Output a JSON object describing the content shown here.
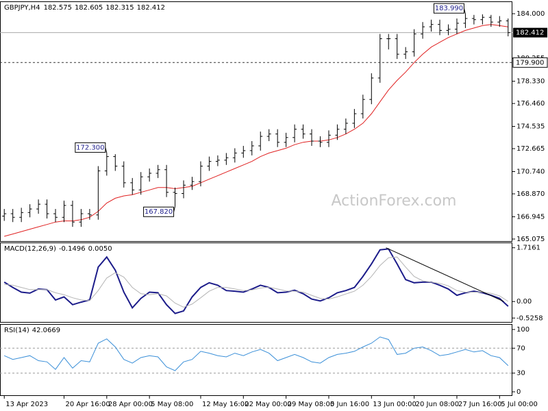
{
  "watermark": "ActionForex.com",
  "chart_data": [
    {
      "type": "ohlc",
      "symbol": "GBPJPY,H4",
      "header_values": [
        182.575,
        182.605,
        182.315,
        182.412
      ],
      "xlim": [
        -0.5,
        59.5
      ],
      "ylim": [
        164.9,
        184.98
      ],
      "yticks": [
        165.075,
        166.945,
        {
          "value": 168.87,
          "label": "168.870"
        },
        {
          "value": 170.74,
          "label": "170.740"
        },
        172.665,
        174.535,
        {
          "value": 176.46,
          "label": "176.460"
        },
        {
          "value": 178.33,
          "label": "178.330"
        },
        180.255,
        {
          "value": 184,
          "label": "184.000"
        }
      ],
      "bar_color": "#000000",
      "open": [
        167.0,
        167.2,
        166.9,
        167.3,
        167.6,
        168.0,
        167.2,
        166.9,
        167.9,
        166.5,
        167.2,
        167.1,
        170.8,
        172.0,
        171.2,
        169.8,
        169.2,
        170.3,
        170.6,
        170.9,
        169.0,
        168.9,
        169.6,
        169.9,
        171.2,
        171.6,
        171.7,
        171.9,
        172.3,
        172.5,
        172.9,
        173.7,
        173.9,
        173.2,
        173.6,
        174.3,
        173.9,
        173.3,
        173.2,
        173.8,
        174.3,
        174.8,
        175.6,
        176.8,
        178.6,
        181.9,
        181.9,
        180.6,
        180.8,
        182.3,
        182.9,
        183.1,
        182.6,
        182.7,
        183.2,
        183.6,
        183.5,
        183.7,
        183.3,
        183.4
      ],
      "high": [
        167.6,
        167.6,
        167.7,
        168.0,
        168.4,
        168.4,
        167.6,
        168.3,
        168.3,
        167.6,
        167.6,
        171.2,
        172.3,
        172.2,
        171.6,
        170.2,
        170.7,
        171.0,
        171.3,
        171.3,
        169.4,
        170.0,
        170.3,
        171.6,
        172.0,
        172.1,
        172.3,
        172.7,
        172.9,
        173.3,
        174.1,
        174.3,
        174.3,
        174.0,
        174.7,
        174.7,
        174.3,
        173.7,
        174.2,
        174.7,
        175.2,
        176.0,
        177.2,
        179.0,
        182.3,
        182.3,
        182.3,
        181.2,
        182.7,
        183.3,
        183.5,
        183.5,
        183.1,
        183.6,
        183.99,
        183.9,
        183.95,
        183.9,
        183.8,
        183.6
      ],
      "low": [
        166.6,
        166.5,
        166.5,
        166.9,
        167.2,
        166.8,
        166.5,
        166.5,
        166.1,
        166.1,
        166.7,
        166.7,
        170.4,
        170.8,
        169.4,
        168.8,
        168.8,
        169.9,
        170.2,
        168.6,
        167.82,
        168.5,
        169.2,
        169.5,
        170.8,
        171.2,
        171.3,
        171.5,
        171.9,
        172.1,
        172.5,
        173.3,
        172.8,
        172.8,
        173.2,
        173.5,
        172.9,
        172.8,
        172.8,
        173.4,
        173.9,
        174.4,
        175.2,
        176.4,
        178.2,
        181.0,
        180.2,
        180.2,
        180.4,
        181.9,
        182.5,
        182.2,
        182.2,
        182.3,
        182.8,
        183.1,
        183.1,
        182.9,
        182.9,
        182.1
      ],
      "close": [
        167.2,
        166.9,
        167.3,
        167.6,
        168.0,
        167.2,
        166.9,
        167.9,
        166.5,
        167.2,
        167.1,
        170.8,
        172.0,
        171.2,
        169.8,
        169.2,
        170.3,
        170.6,
        170.9,
        169.0,
        168.9,
        169.6,
        169.9,
        171.2,
        171.6,
        171.7,
        171.9,
        172.3,
        172.5,
        172.9,
        173.7,
        173.9,
        173.2,
        173.6,
        174.3,
        173.9,
        173.3,
        173.2,
        173.8,
        174.3,
        174.8,
        175.6,
        176.8,
        178.6,
        181.9,
        181.9,
        180.6,
        180.8,
        182.3,
        182.9,
        183.1,
        182.6,
        182.7,
        183.2,
        183.6,
        183.5,
        183.7,
        183.3,
        183.4,
        182.412
      ],
      "series": [
        {
          "color": "#e02020",
          "values": [
            165.3,
            165.5,
            165.7,
            165.9,
            166.1,
            166.3,
            166.5,
            166.6,
            166.6,
            166.7,
            166.9,
            167.4,
            168.1,
            168.5,
            168.7,
            168.8,
            169.0,
            169.2,
            169.4,
            169.4,
            169.3,
            169.4,
            169.5,
            169.8,
            170.1,
            170.4,
            170.7,
            171.0,
            171.3,
            171.6,
            172.0,
            172.3,
            172.5,
            172.7,
            173.0,
            173.2,
            173.3,
            173.3,
            173.4,
            173.6,
            173.9,
            174.3,
            174.8,
            175.6,
            176.6,
            177.6,
            178.4,
            179.1,
            179.9,
            180.6,
            181.2,
            181.6,
            182.0,
            182.3,
            182.6,
            182.8,
            183.0,
            183.1,
            183.0,
            182.9
          ]
        }
      ],
      "levels": [
        {
          "value": 179.9,
          "label": "179.900"
        }
      ],
      "annotations": [
        {
          "value": 183.99,
          "label": "183.990"
        },
        {
          "value": 172.3,
          "label": "172.300"
        },
        {
          "value": 167.82,
          "label": "167.820"
        }
      ]
    },
    {
      "type": "line",
      "indicator": "MACD(12,26,9)",
      "readout": [
        -0.1496,
        {
          "value": 0.005,
          "label": "0.0050"
        }
      ],
      "xlim": [
        -0.5,
        59.5
      ],
      "ylim": [
        -0.651,
        1.8626
      ],
      "yticks": [
        -0.5258,
        {
          "value": 0,
          "label": "0.00"
        },
        1.7161
      ],
      "series": [
        {
          "color": "#1c1c8a",
          "values": [
            0.62,
            0.45,
            0.3,
            0.27,
            0.4,
            0.38,
            0.05,
            0.15,
            -0.1,
            -0.02,
            0.05,
            1.1,
            1.42,
            1.0,
            0.3,
            -0.2,
            0.1,
            0.3,
            0.28,
            -0.1,
            -0.38,
            -0.3,
            0.15,
            0.45,
            0.6,
            0.52,
            0.35,
            0.33,
            0.3,
            0.4,
            0.52,
            0.45,
            0.28,
            0.3,
            0.36,
            0.25,
            0.08,
            0.02,
            0.12,
            0.28,
            0.35,
            0.45,
            0.8,
            1.2,
            1.65,
            1.68,
            1.2,
            0.7,
            0.6,
            0.62,
            0.62,
            0.52,
            0.4,
            0.2,
            0.28,
            0.33,
            0.28,
            0.2,
            0.1,
            -0.1496
          ]
        },
        {
          "color": "#b4b4b4",
          "values": [
            0.55,
            0.52,
            0.45,
            0.38,
            0.38,
            0.38,
            0.28,
            0.22,
            0.12,
            0.05,
            0.03,
            0.35,
            0.75,
            0.92,
            0.78,
            0.45,
            0.25,
            0.22,
            0.25,
            0.18,
            -0.05,
            -0.18,
            -0.08,
            0.12,
            0.33,
            0.45,
            0.45,
            0.4,
            0.35,
            0.37,
            0.43,
            0.46,
            0.4,
            0.34,
            0.33,
            0.3,
            0.2,
            0.1,
            0.08,
            0.15,
            0.24,
            0.33,
            0.52,
            0.8,
            1.15,
            1.4,
            1.42,
            1.1,
            0.8,
            0.66,
            0.62,
            0.58,
            0.5,
            0.35,
            0.3,
            0.3,
            0.3,
            0.26,
            0.18,
            0.005
          ]
        }
      ],
      "trendline": {
        "x": [
          44.7,
          58.5
        ],
        "values": [
          1.7161,
          0
        ]
      }
    },
    {
      "type": "line",
      "indicator": "RSI(14)",
      "readout": [
        42.0669
      ],
      "xlim": [
        -0.5,
        59.5
      ],
      "ylim": [
        -5.5,
        107.7
      ],
      "yticks": [
        0,
        30,
        70,
        100
      ],
      "levels": [
        70,
        30
      ],
      "xticks": [
        {
          "value": 0,
          "label": "13 Apr 2023"
        },
        {
          "value": 7,
          "label": "20 Apr 16:00"
        },
        {
          "value": 12,
          "label": "28 Apr 00:00"
        },
        {
          "value": 17,
          "label": "5 May 08:00"
        },
        {
          "value": 23,
          "label": "12 May 16:00"
        },
        {
          "value": 28,
          "label": "22 May 00:00"
        },
        {
          "value": 33,
          "label": "29 May 08:00"
        },
        {
          "value": 38,
          "label": "5 Jun 16:00"
        },
        {
          "value": 43,
          "label": "13 Jun 00:00"
        },
        {
          "value": 48,
          "label": "20 Jun 08:00"
        },
        {
          "value": 53,
          "label": "27 Jun 16:00"
        },
        {
          "value": 58,
          "label": "5 Jul 00:00"
        }
      ],
      "series": [
        {
          "color": "#3a8fd8",
          "values": [
            58,
            52,
            55,
            58,
            50,
            48,
            36,
            55,
            38,
            50,
            48,
            78,
            85,
            72,
            52,
            46,
            55,
            58,
            56,
            40,
            34,
            48,
            52,
            65,
            62,
            58,
            56,
            62,
            58,
            64,
            68,
            62,
            50,
            55,
            60,
            55,
            48,
            46,
            55,
            60,
            62,
            65,
            72,
            78,
            88,
            84,
            60,
            62,
            70,
            72,
            66,
            58,
            60,
            64,
            68,
            64,
            66,
            58,
            55,
            42.0669
          ]
        }
      ]
    }
  ]
}
